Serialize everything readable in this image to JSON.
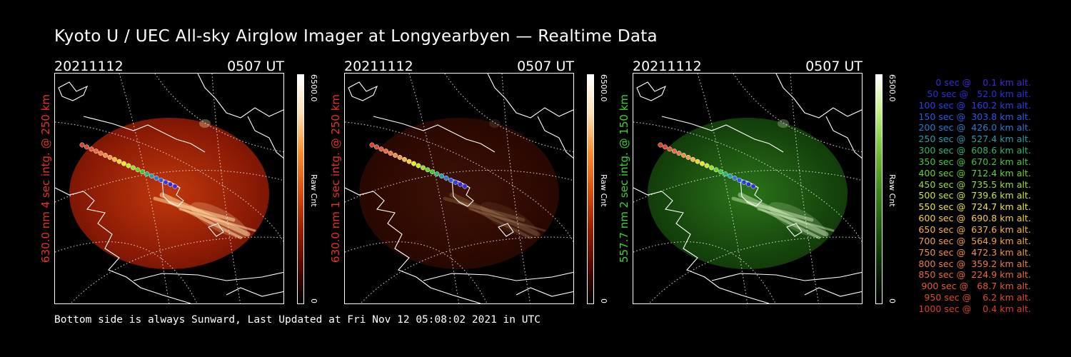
{
  "title": "Kyoto U / UEC All-sky Airglow Imager at Longyearbyen — Realtime Data",
  "footer": "Bottom side is always Sunward, Last Updated at Fri Nov 12 05:08:02 2021 in UTC",
  "panels": [
    {
      "date": "20211112",
      "time": "0507 UT",
      "side_label": "630.0 nm 4 sec intg. @ 250 km",
      "label_color": "#e8341c",
      "cbar_max": "6500.0",
      "cbar_min": "0",
      "cbar_title": "Raw Cnt",
      "scheme": "red",
      "brightness": "high"
    },
    {
      "date": "20211112",
      "time": "0507 UT",
      "side_label": "630.0 nm 1 sec intg. @ 250 km",
      "label_color": "#e8341c",
      "cbar_max": "6500.0",
      "cbar_min": "0",
      "cbar_title": "Raw Cnt",
      "scheme": "red",
      "brightness": "low"
    },
    {
      "date": "20211112",
      "time": "0507 UT",
      "side_label": "557.7 nm 2 sec intg. @ 150 km",
      "label_color": "#3bd42a",
      "cbar_max": "6500.0",
      "cbar_min": "0",
      "cbar_title": "Raw Cnt",
      "scheme": "green",
      "brightness": "medium"
    }
  ],
  "trajectory_legend": [
    {
      "text": "   0 sec @    0.1 km alt.",
      "color": "#3a2ad8"
    },
    {
      "text": "  50 sec @   52.0 km alt.",
      "color": "#2a2ee0"
    },
    {
      "text": " 100 sec @  160.2 km alt.",
      "color": "#2840e8"
    },
    {
      "text": " 150 sec @  303.8 km alt.",
      "color": "#2a5ae6"
    },
    {
      "text": " 200 sec @  426.0 km alt.",
      "color": "#2a7ad0"
    },
    {
      "text": " 250 sec @  527.4 km alt.",
      "color": "#2a9aa6"
    },
    {
      "text": " 300 sec @  608.6 km alt.",
      "color": "#26b672"
    },
    {
      "text": " 350 sec @  670.2 km alt.",
      "color": "#3ec83a"
    },
    {
      "text": " 400 sec @  712.4 km alt.",
      "color": "#66d42a"
    },
    {
      "text": " 450 sec @  735.5 km alt.",
      "color": "#9cde2a"
    },
    {
      "text": " 500 sec @  739.6 km alt.",
      "color": "#c8e82a"
    },
    {
      "text": " 550 sec @  724.7 km alt.",
      "color": "#eee82c"
    },
    {
      "text": " 600 sec @  690.8 km alt.",
      "color": "#f8d030"
    },
    {
      "text": " 650 sec @  637.6 km alt.",
      "color": "#f6b43a"
    },
    {
      "text": " 700 sec @  564.9 km alt.",
      "color": "#f4a042"
    },
    {
      "text": " 750 sec @  472.3 km alt.",
      "color": "#f09044"
    },
    {
      "text": " 800 sec @  359.2 km alt.",
      "color": "#ec7e42"
    },
    {
      "text": " 850 sec @  224.9 km alt.",
      "color": "#e86a3a"
    },
    {
      "text": " 900 sec @   68.7 km alt.",
      "color": "#e45a34"
    },
    {
      "text": " 950 sec @    6.2 km alt.",
      "color": "#e04a2e"
    },
    {
      "text": "1000 sec @    0.4 km alt.",
      "color": "#dc3c2a"
    }
  ]
}
